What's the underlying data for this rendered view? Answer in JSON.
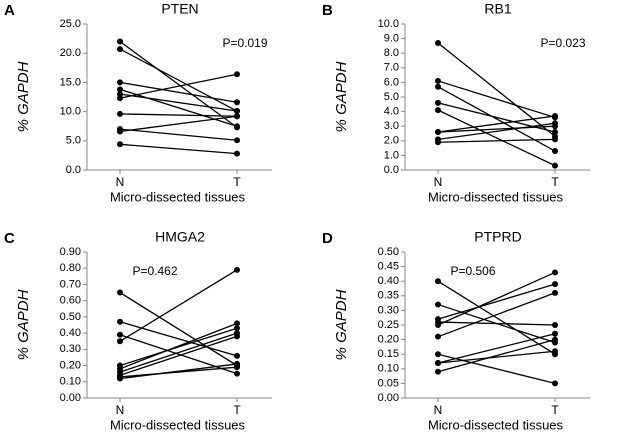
{
  "chart_data": [
    {
      "type": "line",
      "panel": "A",
      "title": "PTEN",
      "annotation": "P=0.019",
      "annotation_position": "top-right",
      "y_label": "% GAPDH",
      "x_label": "Micro-dissected tissues",
      "categories": [
        "N",
        "T"
      ],
      "color": "#000000",
      "ylim": [
        0,
        25
      ],
      "yticks": [
        {
          "value": 0,
          "label": "0.0"
        },
        {
          "value": 5,
          "label": "5.0"
        },
        {
          "value": 10,
          "label": "10.0"
        },
        {
          "value": 15,
          "label": "15.0"
        },
        {
          "value": 20,
          "label": "20.0"
        },
        {
          "value": 25,
          "label": "25.0"
        }
      ],
      "series": [
        {
          "values": [
            22.0,
            7.3
          ]
        },
        {
          "values": [
            20.7,
            10.1
          ]
        },
        {
          "values": [
            15.0,
            11.6
          ]
        },
        {
          "values": [
            13.8,
            7.5
          ]
        },
        {
          "values": [
            13.0,
            10.1
          ]
        },
        {
          "values": [
            12.3,
            16.4
          ]
        },
        {
          "values": [
            9.6,
            9.2
          ]
        },
        {
          "values": [
            7.0,
            5.1
          ]
        },
        {
          "values": [
            6.6,
            9.2
          ]
        },
        {
          "values": [
            4.4,
            2.8
          ]
        }
      ]
    },
    {
      "type": "line",
      "panel": "B",
      "title": "RB1",
      "annotation": "P=0.023",
      "annotation_position": "top-right",
      "y_label": "% GAPDH",
      "x_label": "Micro-dissected tissues",
      "categories": [
        "N",
        "T"
      ],
      "color": "#000000",
      "ylim": [
        0,
        10
      ],
      "yticks": [
        {
          "value": 0,
          "label": "0.0"
        },
        {
          "value": 1,
          "label": "1.0"
        },
        {
          "value": 2,
          "label": "2.0"
        },
        {
          "value": 3,
          "label": "3.0"
        },
        {
          "value": 4,
          "label": "4.0"
        },
        {
          "value": 5,
          "label": "5.0"
        },
        {
          "value": 6,
          "label": "6.0"
        },
        {
          "value": 7,
          "label": "7.0"
        },
        {
          "value": 8,
          "label": "8.0"
        },
        {
          "value": 9,
          "label": "9.0"
        },
        {
          "value": 10,
          "label": "10.0"
        }
      ],
      "series": [
        {
          "values": [
            8.7,
            2.3
          ]
        },
        {
          "values": [
            6.1,
            3.6
          ]
        },
        {
          "values": [
            5.7,
            1.3
          ]
        },
        {
          "values": [
            4.6,
            2.6
          ]
        },
        {
          "values": [
            4.1,
            0.3
          ]
        },
        {
          "values": [
            2.6,
            3.7
          ]
        },
        {
          "values": [
            2.6,
            3.0
          ]
        },
        {
          "values": [
            2.1,
            3.2
          ]
        },
        {
          "values": [
            1.9,
            2.1
          ]
        }
      ]
    },
    {
      "type": "line",
      "panel": "C",
      "title": "HMGA2",
      "annotation": "P=0.462",
      "annotation_position": "top-center",
      "y_label": "% GAPDH",
      "x_label": "Micro-dissected tissues",
      "categories": [
        "N",
        "T"
      ],
      "color": "#000000",
      "ylim": [
        0,
        0.9
      ],
      "yticks": [
        {
          "value": 0,
          "label": "0.00"
        },
        {
          "value": 0.1,
          "label": "0.10"
        },
        {
          "value": 0.2,
          "label": "0.20"
        },
        {
          "value": 0.3,
          "label": "0.30"
        },
        {
          "value": 0.4,
          "label": "0.40"
        },
        {
          "value": 0.5,
          "label": "0.50"
        },
        {
          "value": 0.6,
          "label": "0.60"
        },
        {
          "value": 0.7,
          "label": "0.70"
        },
        {
          "value": 0.8,
          "label": "0.80"
        },
        {
          "value": 0.9,
          "label": "0.90"
        }
      ],
      "series": [
        {
          "values": [
            0.65,
            0.2
          ]
        },
        {
          "values": [
            0.47,
            0.26
          ]
        },
        {
          "values": [
            0.39,
            0.15
          ]
        },
        {
          "values": [
            0.35,
            0.79
          ]
        },
        {
          "values": [
            0.2,
            0.43
          ]
        },
        {
          "values": [
            0.18,
            0.46
          ]
        },
        {
          "values": [
            0.16,
            0.4
          ]
        },
        {
          "values": [
            0.14,
            0.38
          ]
        },
        {
          "values": [
            0.13,
            0.19
          ]
        },
        {
          "values": [
            0.12,
            0.21
          ]
        }
      ]
    },
    {
      "type": "line",
      "panel": "D",
      "title": "PTPRD",
      "annotation": "P=0.506",
      "annotation_position": "top-center",
      "y_label": "% GAPDH",
      "x_label": "Micro-dissected tissues",
      "categories": [
        "N",
        "T"
      ],
      "color": "#000000",
      "ylim": [
        0,
        0.5
      ],
      "yticks": [
        {
          "value": 0,
          "label": "0.00"
        },
        {
          "value": 0.05,
          "label": "0.05"
        },
        {
          "value": 0.1,
          "label": "0.10"
        },
        {
          "value": 0.15,
          "label": "0.15"
        },
        {
          "value": 0.2,
          "label": "0.20"
        },
        {
          "value": 0.25,
          "label": "0.25"
        },
        {
          "value": 0.3,
          "label": "0.30"
        },
        {
          "value": 0.35,
          "label": "0.35"
        },
        {
          "value": 0.4,
          "label": "0.40"
        },
        {
          "value": 0.45,
          "label": "0.45"
        },
        {
          "value": 0.5,
          "label": "0.50"
        }
      ],
      "series": [
        {
          "values": [
            0.4,
            0.15
          ]
        },
        {
          "values": [
            0.32,
            0.19
          ]
        },
        {
          "values": [
            0.27,
            0.39
          ]
        },
        {
          "values": [
            0.26,
            0.25
          ]
        },
        {
          "values": [
            0.25,
            0.43
          ]
        },
        {
          "values": [
            0.21,
            0.36
          ]
        },
        {
          "values": [
            0.15,
            0.05
          ]
        },
        {
          "values": [
            0.12,
            0.16
          ]
        },
        {
          "values": [
            0.12,
            0.22
          ]
        },
        {
          "values": [
            0.09,
            0.2
          ]
        }
      ]
    }
  ]
}
